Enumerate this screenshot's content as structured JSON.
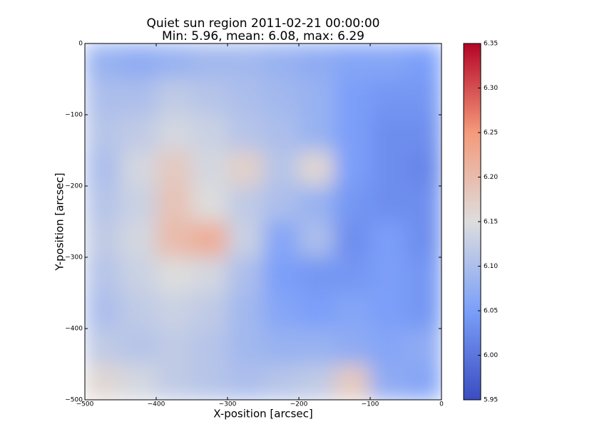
{
  "chart_data": {
    "type": "heatmap",
    "title": "Quiet sun region 2011-02-21 00:00:00",
    "subtitle": "Min: 5.96, mean: 6.08, max: 6.29",
    "x_label": "X-position [arcsec]",
    "y_label": "Y-position [arcsec]",
    "xlim": [
      -500,
      0
    ],
    "ylim": [
      -500,
      0
    ],
    "xticks": [
      {
        "value": -500,
        "label": "−500"
      },
      {
        "value": -400,
        "label": "−400"
      },
      {
        "value": -300,
        "label": "−300"
      },
      {
        "value": -200,
        "label": "−200"
      },
      {
        "value": -100,
        "label": "−100"
      },
      0
    ],
    "yticks": [
      {
        "value": -500,
        "label": "−500"
      },
      {
        "value": -400,
        "label": "−400"
      },
      {
        "value": -300,
        "label": "−300"
      },
      {
        "value": -200,
        "label": "−200"
      },
      {
        "value": -100,
        "label": "−100"
      },
      0
    ],
    "xbins": [
      -500,
      -450,
      -400,
      -350,
      -300,
      -250,
      -200,
      -150,
      -100,
      -50,
      0
    ],
    "ybins": [
      0,
      -50,
      -100,
      -150,
      -200,
      -250,
      -300,
      -350,
      -400,
      -450,
      -500
    ],
    "z": [
      [
        6.08,
        6.07,
        6.08,
        6.09,
        6.09,
        6.08,
        6.07,
        6.06,
        6.06,
        6.05
      ],
      [
        6.1,
        6.1,
        6.12,
        6.11,
        6.1,
        6.09,
        6.08,
        6.05,
        6.04,
        6.04
      ],
      [
        6.11,
        6.12,
        6.14,
        6.13,
        6.11,
        6.1,
        6.08,
        6.05,
        6.03,
        6.03
      ],
      [
        6.1,
        6.14,
        6.18,
        6.14,
        6.17,
        6.11,
        6.16,
        6.05,
        6.03,
        6.02
      ],
      [
        6.11,
        6.13,
        6.19,
        6.15,
        6.12,
        6.1,
        6.08,
        6.04,
        6.03,
        6.03
      ],
      [
        6.12,
        6.14,
        6.2,
        6.22,
        6.13,
        6.06,
        6.1,
        6.03,
        6.05,
        6.03
      ],
      [
        6.11,
        6.13,
        6.15,
        6.14,
        6.1,
        6.05,
        6.04,
        6.04,
        6.05,
        6.04
      ],
      [
        6.1,
        6.12,
        6.13,
        6.12,
        6.09,
        6.06,
        6.05,
        6.06,
        6.05,
        6.04
      ],
      [
        6.12,
        6.11,
        6.12,
        6.11,
        6.09,
        6.08,
        6.08,
        6.07,
        6.06,
        6.07
      ],
      [
        6.16,
        6.14,
        6.12,
        6.11,
        6.1,
        6.11,
        6.12,
        6.18,
        6.07,
        6.06
      ]
    ],
    "colormap": [
      "#3b4cc0",
      "#7b9ff9",
      "#dddddd",
      "#f49a7b",
      "#b40426"
    ],
    "clim": [
      5.95,
      6.35
    ],
    "cticks": [
      5.95,
      {
        "value": 6.0,
        "label": "6.00"
      },
      6.05,
      {
        "value": 6.1,
        "label": "6.10"
      },
      6.15,
      {
        "value": 6.2,
        "label": "6.20"
      },
      6.25,
      {
        "value": 6.3,
        "label": "6.30"
      },
      6.35
    ]
  }
}
